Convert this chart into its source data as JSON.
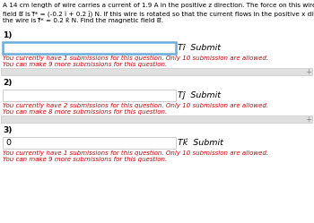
{
  "bg_color": "#ffffff",
  "header_line1": "A 14 cm length of wire carries a current of 1.9 A in the positive z direction. The force on this wire due to a magnetic",
  "header_line2": "field B⃗ is f⃗* = (-0.2 î + 0.2 ĵ) N. If this wire is rotated so that the current flows in the positive x direction, the force on",
  "header_line3": "the wire is f⃗* = 0.2 k̂ N. Find the magnetic field B⃗.",
  "section1_label": "1)",
  "section1_unit": "Tî  Submit",
  "section1_msg1": "You currently have 1 submissions for this question. Only 10 submission are allowed.",
  "section1_msg2": "You can make 9 more submissions for this question.",
  "section2_label": "2)",
  "section2_unit": "Tĵ  Submit",
  "section2_msg1": "You currently have 2 submissions for this question. Only 10 submission are allowed.",
  "section2_msg2": "You can make 8 more submissions for this question.",
  "section3_label": "3)",
  "section3_value": "0",
  "section3_unit": "Tk̂  Submit",
  "section3_msg1": "You currently have 1 submissions for this question. Only 10 submission are allowed.",
  "section3_msg2": "You can make 9 more submissions for this question.",
  "red_color": "#cc0000",
  "text_color": "#000000",
  "input_bg": "#ffffff",
  "input_border_blue": "#6aaddc",
  "input_border_gray": "#cccccc",
  "gray_bar_color": "#e0e0e0",
  "gray_bar_border": "#c8c8c8",
  "plus_color": "#888888",
  "header_fs": 5.2,
  "label_fs": 6.5,
  "unit_fs": 6.8,
  "msg_fs": 5.0,
  "bar_plus_fs": 6.0
}
